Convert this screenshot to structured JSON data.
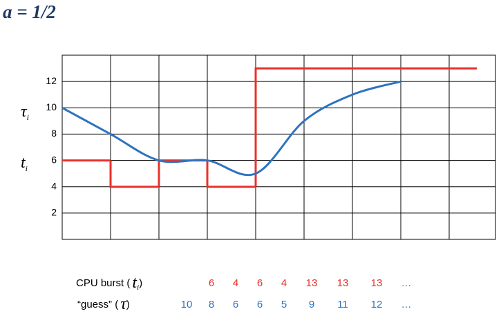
{
  "chart_data": {
    "type": "line",
    "title": "a = 1/2",
    "ylim": [
      0,
      14
    ],
    "yticks": [
      2,
      4,
      6,
      8,
      10,
      12
    ],
    "grid": true,
    "columns": 9,
    "axis_symbols": [
      {
        "symbol": "τ",
        "sub": "i"
      },
      {
        "symbol": "t",
        "sub": "i"
      }
    ],
    "brackets": [
      "(",
      ")"
    ],
    "continuation": "…",
    "series": [
      {
        "name": "CPU burst",
        "symbol": "t",
        "sub": "i",
        "color": "#e8312a",
        "style": "step",
        "values": [
          6,
          4,
          6,
          4,
          13,
          13,
          13
        ]
      },
      {
        "name": "“guess”",
        "symbol": "τ",
        "color": "#2f72c0",
        "style": "smooth",
        "values": [
          10,
          8,
          6,
          6,
          5,
          9,
          11,
          12
        ]
      }
    ]
  }
}
